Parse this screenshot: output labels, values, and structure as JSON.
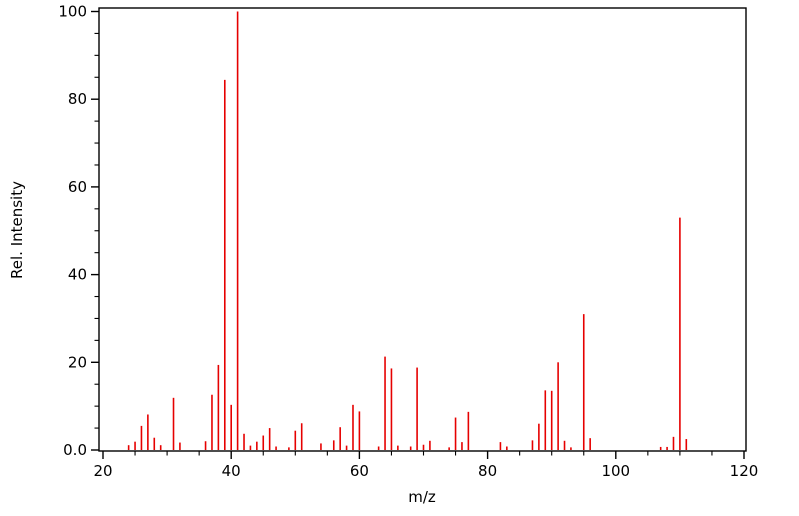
{
  "chart_data": {
    "type": "bar",
    "subtype": "mass-spectrum",
    "title": "",
    "xlabel": "m/z",
    "ylabel": "Rel. Intensity",
    "xlim": [
      19.4,
      120.3
    ],
    "ylim": [
      0,
      101
    ],
    "grid": false,
    "legend": "none",
    "bar_color": "#e60000",
    "axis_color": "#000000",
    "background_color": "#ffffff",
    "x_major_ticks": [
      20,
      40,
      60,
      80,
      100,
      120
    ],
    "x_tick_labels": [
      "20",
      "40",
      "60",
      "80",
      "100",
      "120"
    ],
    "x_minor_tick_step": 5,
    "y_major_ticks": [
      0,
      20,
      40,
      60,
      80,
      100
    ],
    "y_tick_labels": [
      "0.0",
      "20",
      "40",
      "60",
      "80",
      "100"
    ],
    "y_minor_tick_step": 5,
    "series": [
      {
        "name": "Rel. Intensity",
        "points": [
          [
            24,
            1.1
          ],
          [
            25,
            1.9
          ],
          [
            26,
            5.5
          ],
          [
            27,
            8.1
          ],
          [
            28,
            2.8
          ],
          [
            29,
            1.1
          ],
          [
            31,
            11.9
          ],
          [
            32,
            1.7
          ],
          [
            36,
            2.0
          ],
          [
            37,
            12.6
          ],
          [
            38,
            19.4
          ],
          [
            39,
            84.4
          ],
          [
            40,
            10.3
          ],
          [
            41,
            100.0
          ],
          [
            42,
            3.7
          ],
          [
            43,
            1.0
          ],
          [
            44,
            1.9
          ],
          [
            45,
            3.3
          ],
          [
            46,
            5.0
          ],
          [
            47,
            0.8
          ],
          [
            49,
            0.6
          ],
          [
            50,
            4.4
          ],
          [
            51,
            6.1
          ],
          [
            54,
            1.5
          ],
          [
            56,
            2.2
          ],
          [
            57,
            5.2
          ],
          [
            58,
            1.0
          ],
          [
            59,
            10.3
          ],
          [
            60,
            8.8
          ],
          [
            63,
            0.8
          ],
          [
            64,
            21.3
          ],
          [
            65,
            18.6
          ],
          [
            66,
            1.0
          ],
          [
            68,
            0.8
          ],
          [
            69,
            18.8
          ],
          [
            70,
            1.2
          ],
          [
            71,
            2.1
          ],
          [
            74,
            0.6
          ],
          [
            75,
            7.4
          ],
          [
            76,
            1.8
          ],
          [
            77,
            8.7
          ],
          [
            82,
            1.8
          ],
          [
            83,
            0.8
          ],
          [
            87,
            2.2
          ],
          [
            88,
            6.0
          ],
          [
            89,
            13.6
          ],
          [
            90,
            13.5
          ],
          [
            91,
            20.0
          ],
          [
            92,
            2.1
          ],
          [
            93,
            0.6
          ],
          [
            95,
            31.0
          ],
          [
            96,
            2.7
          ],
          [
            107,
            0.7
          ],
          [
            108,
            0.7
          ],
          [
            109,
            3.0
          ],
          [
            110,
            53.0
          ],
          [
            111,
            2.5
          ]
        ]
      }
    ]
  }
}
